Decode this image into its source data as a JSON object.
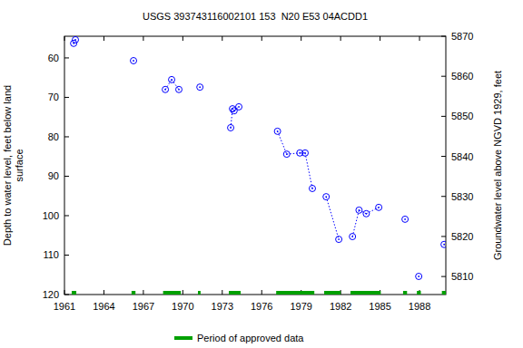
{
  "chart_data": {
    "type": "scatter",
    "title": "USGS 393743116002101 153  N20 E53 04ACDD1",
    "xlabel": "",
    "ylabel": [
      "Depth to water level, feet below land",
      "surface"
    ],
    "y2label": "Groundwater level above NGVD 1929, feet",
    "x": [
      1961.7,
      1961.83,
      1966.25,
      1968.67,
      1969.15,
      1969.7,
      1971.3,
      1973.64,
      1973.78,
      1973.9,
      1974.26,
      1977.2,
      1977.9,
      1978.9,
      1979.3,
      1979.85,
      1980.9,
      1981.86,
      1982.9,
      1983.4,
      1983.95,
      1984.9,
      1986.9,
      1987.94,
      1989.87
    ],
    "series": [
      {
        "name": "Depth to water level",
        "color": "#0000ff",
        "marker": "circle",
        "line_style": "dotted",
        "values": [
          56.3,
          55.4,
          60.7,
          68.0,
          65.5,
          68.0,
          67.4,
          77.7,
          72.9,
          73.4,
          72.4,
          78.6,
          84.4,
          84.1,
          84.1,
          93.1,
          95.2,
          106.0,
          105.3,
          98.6,
          99.5,
          97.9,
          100.9,
          115.4,
          107.3
        ]
      }
    ],
    "approved_periods": [
      [
        1961.55,
        1961.9
      ],
      [
        1966.1,
        1966.4
      ],
      [
        1968.5,
        1969.85
      ],
      [
        1971.15,
        1971.35
      ],
      [
        1973.5,
        1974.4
      ],
      [
        1977.1,
        1980.0
      ],
      [
        1980.75,
        1982.0
      ],
      [
        1982.75,
        1985.05
      ],
      [
        1986.75,
        1987.05
      ],
      [
        1987.8,
        1988.1
      ],
      [
        1989.7,
        1990.0
      ]
    ],
    "approved_label": "Period of approved data",
    "approved_color": "#00a000",
    "xlim": [
      1961,
      1990
    ],
    "xticks": [
      1961,
      1964,
      1967,
      1970,
      1973,
      1976,
      1979,
      1982,
      1985,
      1988
    ],
    "ylim": [
      120,
      54.5
    ],
    "yticks": [
      60,
      70,
      80,
      90,
      100,
      110,
      120
    ],
    "y2lim": [
      5805.5,
      5870
    ],
    "y2ticks": [
      5810,
      5820,
      5830,
      5840,
      5850,
      5860,
      5870
    ],
    "grid": false,
    "legend": "bottom"
  }
}
